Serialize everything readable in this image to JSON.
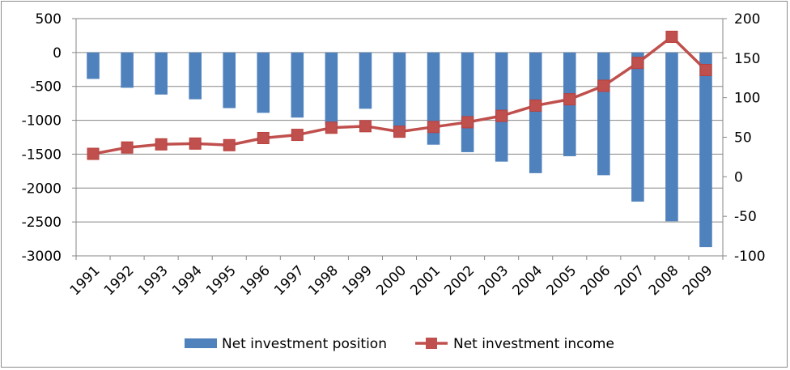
{
  "chart_data": {
    "type": "bar-line-combo",
    "title": "",
    "categories": [
      "1991",
      "1992",
      "1993",
      "1994",
      "1995",
      "1996",
      "1997",
      "1998",
      "1999",
      "2000",
      "2001",
      "2002",
      "2003",
      "2004",
      "2005",
      "2006",
      "2007",
      "2008",
      "2009"
    ],
    "series": [
      {
        "name": "Net investment position",
        "type": "bar",
        "axis": "left",
        "color": "#4f81bd",
        "values": [
          -390,
          -520,
          -620,
          -690,
          -820,
          -890,
          -960,
          -1070,
          -830,
          -1120,
          -1360,
          -1470,
          -1610,
          -1780,
          -1530,
          -1810,
          -2200,
          -2490,
          -2870
        ]
      },
      {
        "name": "Net investment income",
        "type": "line",
        "axis": "right",
        "color": "#c0504d",
        "values": [
          29,
          37,
          41,
          42,
          40,
          49,
          53,
          62,
          64,
          57,
          63,
          69,
          77,
          90,
          98,
          115,
          144,
          177,
          135
        ]
      }
    ],
    "left_axis": {
      "min": -3000,
      "max": 500,
      "step": 500,
      "ticks": [
        "500",
        "0",
        "-500",
        "-1000",
        "-1500",
        "-2000",
        "-2500",
        "-3000"
      ]
    },
    "right_axis": {
      "min": -100,
      "max": 200,
      "step": 50,
      "ticks": [
        "200",
        "150",
        "100",
        "50",
        "0",
        "-50",
        "-100"
      ]
    },
    "grid": true,
    "legend_position": "bottom"
  }
}
